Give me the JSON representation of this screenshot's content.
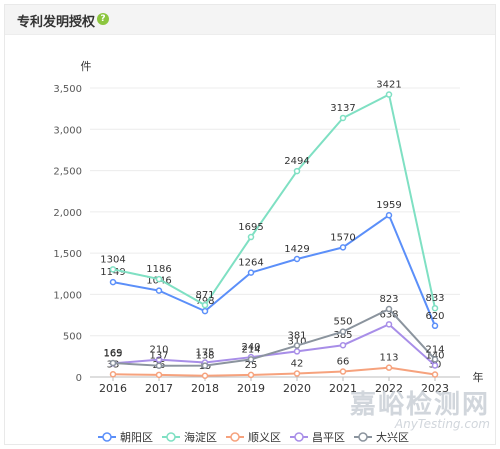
{
  "panel": {
    "title": "专利发明授权",
    "help_glyph": "?"
  },
  "watermark": {
    "line1": "嘉峪检测网",
    "line2": "AnyTesting.com"
  },
  "chart_data": {
    "type": "line",
    "title": "",
    "xlabel": "年",
    "ylabel": "件",
    "ylim": [
      0,
      3500
    ],
    "yticks": [
      0,
      500,
      1000,
      1500,
      2000,
      2500,
      3000,
      3500
    ],
    "ytick_labels": [
      "0",
      "500",
      "1,000",
      "1,500",
      "2,000",
      "2,500",
      "3,000",
      "3,500"
    ],
    "categories": [
      "2016",
      "2017",
      "2018",
      "2019",
      "2020",
      "2021",
      "2022",
      "2023"
    ],
    "grid": true,
    "legend_position": "bottom",
    "series": [
      {
        "name": "朝阳区",
        "color": "#5b8ff9",
        "values": [
          1149,
          1046,
          798,
          1264,
          1429,
          1570,
          1959,
          620
        ]
      },
      {
        "name": "海淀区",
        "color": "#7fe0c3",
        "values": [
          1304,
          1186,
          871,
          1695,
          2494,
          3137,
          3421,
          833
        ]
      },
      {
        "name": "顺义区",
        "color": "#f6a27d",
        "values": [
          33,
          26,
          15,
          25,
          42,
          66,
          113,
          30
        ]
      },
      {
        "name": "昌平区",
        "color": "#a88ee8",
        "values": [
          165,
          210,
          175,
          240,
          310,
          385,
          638,
          140
        ]
      },
      {
        "name": "大兴区",
        "color": "#8b949e",
        "values": [
          169,
          137,
          138,
          214,
          381,
          550,
          823,
          214
        ]
      }
    ]
  }
}
